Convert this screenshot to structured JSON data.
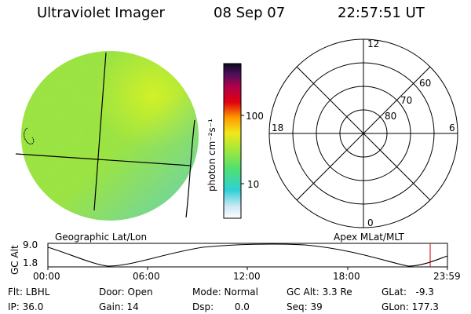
{
  "header": {
    "title": "Ultraviolet Imager",
    "date": "08 Sep 07",
    "time": "22:57:51 UT"
  },
  "colorbar": {
    "unit_label": "photon cm⁻²s⁻¹",
    "ticks": [
      "100",
      "10"
    ]
  },
  "polar_plot": {
    "mlt_labels": [
      "12",
      "18",
      "6",
      "0"
    ],
    "lat_labels": [
      "60",
      "70",
      "80"
    ]
  },
  "captions": {
    "left": "Geographic Lat/Lon",
    "right": "Apex MLat/MLT"
  },
  "altitude_plot": {
    "axis_label": "GC Alt",
    "y_ticks": [
      "9.0",
      "1.8"
    ],
    "x_ticks": [
      "00:00",
      "06:00",
      "12:00",
      "18:00",
      "23:59"
    ]
  },
  "info": {
    "filter": "Flt: LBHL",
    "ip": "IP: 36.0",
    "door": "Door: Open",
    "gain": "Gain: 14",
    "mode": "Mode: Normal",
    "dsp": "Dsp:       0.0",
    "gc_alt": "GC Alt: 3.3 Re",
    "seq": "Seq: 39",
    "glat": "GLat:   -9.3",
    "glon": "GLon: 177.3"
  },
  "colors": {
    "disk_base": "#9be33a",
    "disk_bright": "#c8ee2a",
    "disk_dim": "#5fd0c0",
    "marker": "#cc0000"
  }
}
